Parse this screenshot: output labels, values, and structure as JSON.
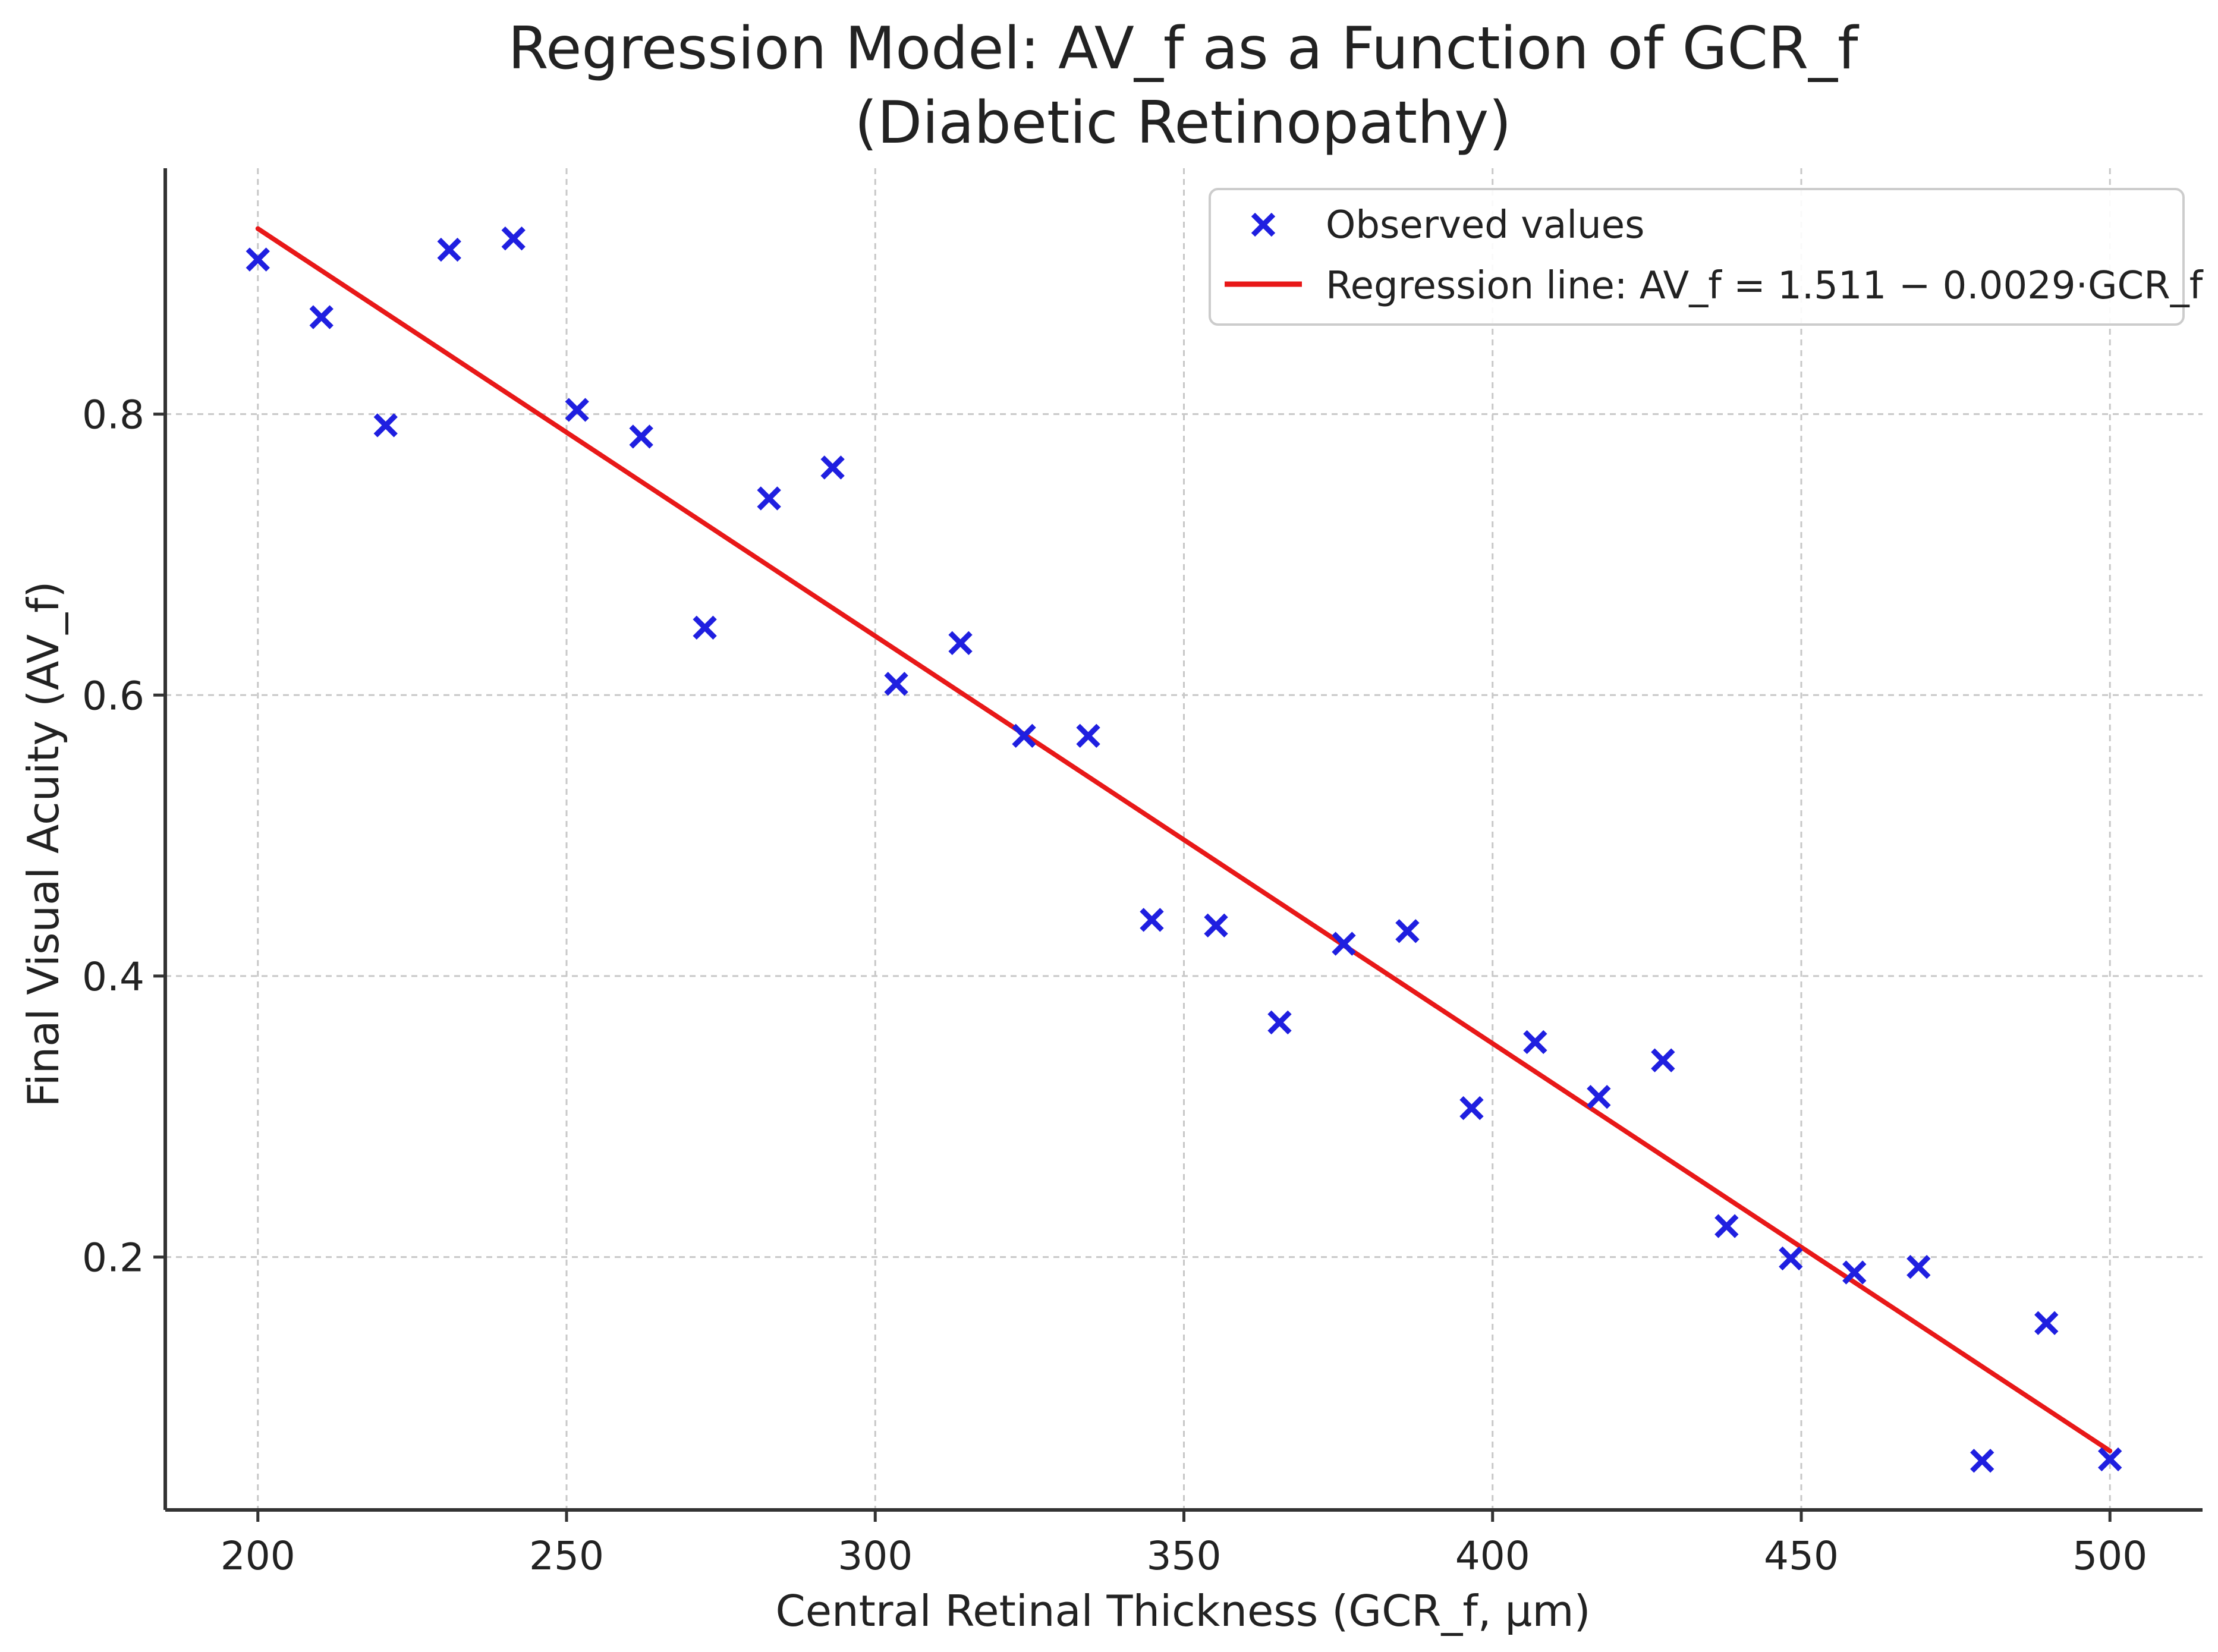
{
  "chart_data": {
    "type": "scatter",
    "title_line1": "Regression Model: AV_f as a Function of GCR_f",
    "title_line2": "(Diabetic Retinopathy)",
    "xlabel": "Central Retinal Thickness (GCR_f, µm)",
    "ylabel": "Final Visual Acuity (AV_f)",
    "xlim": [
      185,
      515
    ],
    "ylim": [
      0.02,
      0.975
    ],
    "xticks": [
      200,
      250,
      300,
      350,
      400,
      450,
      500
    ],
    "yticks": [
      0.2,
      0.4,
      0.6,
      0.8
    ],
    "grid": true,
    "legend_position": "upper-right",
    "colors": {
      "points": "#1f1fe0",
      "line": "#e81818"
    },
    "series": [
      {
        "name": "Observed values",
        "kind": "scatter",
        "marker": "x",
        "x": [
          200,
          210.3,
          220.7,
          231,
          241.4,
          251.7,
          262.1,
          272.4,
          282.8,
          293.1,
          303.4,
          313.8,
          324.1,
          334.5,
          344.8,
          355.2,
          365.5,
          375.9,
          386.2,
          396.6,
          406.9,
          417.2,
          427.6,
          437.9,
          448.3,
          458.6,
          469,
          479.3,
          489.7,
          500
        ],
        "y": [
          0.91,
          0.869,
          0.792,
          0.917,
          0.925,
          0.803,
          0.784,
          0.648,
          0.74,
          0.762,
          0.608,
          0.637,
          0.571,
          0.571,
          0.44,
          0.436,
          0.367,
          0.423,
          0.432,
          0.306,
          0.353,
          0.314,
          0.34,
          0.222,
          0.199,
          0.189,
          0.193,
          0.055,
          0.153,
          0.056
        ]
      },
      {
        "name": "Regression line: AV_f = 1.511 − 0.0029·GCR_f",
        "kind": "line",
        "x": [
          200,
          500
        ],
        "y": [
          0.932,
          0.062
        ]
      }
    ]
  }
}
